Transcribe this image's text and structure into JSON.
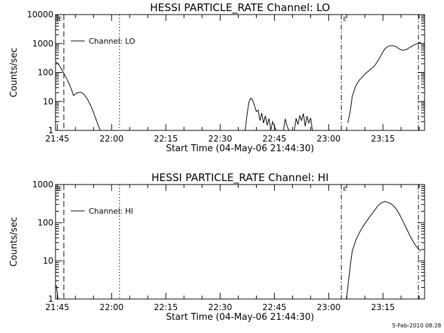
{
  "chart_data": [
    {
      "type": "line",
      "title": "HESSI PARTICLE_RATE Channel: LO",
      "xlabel": "Start Time (04-May-06 21:44:30)",
      "ylabel": "Counts/sec",
      "yscale": "log",
      "ylim": [
        1,
        10000
      ],
      "xlim_minutes": [
        0,
        102
      ],
      "x_tick_labels": [
        "21:45",
        "22:00",
        "22:15",
        "22:30",
        "22:45",
        "23:00",
        "23:15"
      ],
      "y_tick_labels": [
        "1",
        "10",
        "100",
        "1000",
        "10000"
      ],
      "legend": "Channel: LO",
      "legend_position": "top-left",
      "marker_label": "E",
      "series": [
        {
          "name": "Channel: LO",
          "segments": [
            [
              [
                0.2,
                230
              ],
              [
                1,
                180
              ],
              [
                2,
                110
              ],
              [
                3,
                65
              ],
              [
                4,
                35
              ],
              [
                5,
                16
              ],
              [
                6,
                20
              ],
              [
                7,
                21
              ],
              [
                8,
                17
              ],
              [
                9,
                11
              ],
              [
                10,
                6
              ],
              [
                11,
                2.8
              ],
              [
                12,
                1.3
              ],
              [
                12.4,
                1
              ]
            ],
            [
              [
                52.4,
                1
              ],
              [
                53,
                4
              ],
              [
                53.5,
                10
              ],
              [
                54,
                13
              ],
              [
                54.5,
                11
              ],
              [
                55,
                7
              ],
              [
                55.5,
                4.5
              ],
              [
                56,
                5
              ],
              [
                56.5,
                2.2
              ],
              [
                57,
                4
              ],
              [
                57.5,
                1.8
              ],
              [
                58,
                3.2
              ],
              [
                58.5,
                1.5
              ],
              [
                59,
                2.6
              ],
              [
                59.5,
                1
              ],
              [
                60,
                2
              ],
              [
                60.5,
                1.4
              ],
              [
                61,
                1
              ]
            ],
            [
              [
                63,
                1
              ],
              [
                63.5,
                2.5
              ],
              [
                64,
                1.4
              ],
              [
                64.5,
                1
              ]
            ],
            [
              [
                66,
                1
              ],
              [
                66.5,
                2.6
              ],
              [
                67,
                1.6
              ],
              [
                67.5,
                3.2
              ],
              [
                68,
                2.2
              ],
              [
                68.5,
                3.8
              ],
              [
                69,
                1.4
              ],
              [
                69.5,
                3.1
              ],
              [
                70,
                1.8
              ],
              [
                70.5,
                2.7
              ],
              [
                71,
                1
              ]
            ],
            [
              [
                80.8,
                1.8
              ],
              [
                81.5,
                5
              ],
              [
                82,
                15
              ],
              [
                83,
                35
              ],
              [
                84,
                55
              ],
              [
                86,
                100
              ],
              [
                88,
                160
              ],
              [
                89,
                240
              ],
              [
                90,
                400
              ],
              [
                91,
                650
              ],
              [
                92,
                820
              ],
              [
                93,
                850
              ],
              [
                94,
                800
              ],
              [
                95,
                650
              ],
              [
                96,
                580
              ],
              [
                97,
                620
              ],
              [
                98,
                750
              ],
              [
                99,
                880
              ],
              [
                100,
                1000
              ],
              [
                101,
                1100
              ]
            ]
          ]
        }
      ]
    },
    {
      "type": "line",
      "title": "HESSI PARTICLE_RATE Channel: HI",
      "xlabel": "Start Time (04-May-06 21:44:30)",
      "ylabel": "Counts/sec",
      "yscale": "log",
      "ylim": [
        1,
        1000
      ],
      "xlim_minutes": [
        0,
        102
      ],
      "x_tick_labels": [
        "21:45",
        "22:00",
        "22:15",
        "22:30",
        "22:45",
        "23:00",
        "23:15"
      ],
      "y_tick_labels": [
        "1",
        "10",
        "100",
        "1000"
      ],
      "legend": "Channel: HI",
      "legend_position": "top-left",
      "marker_label": "E",
      "series": [
        {
          "name": "Channel: HI",
          "segments": [
            [
              [
                0.2,
                2.3
              ],
              [
                0.7,
                1
              ]
            ],
            [
              [
                80.4,
                1
              ],
              [
                81,
                3
              ],
              [
                81.5,
                8
              ],
              [
                82,
                18
              ],
              [
                83,
                35
              ],
              [
                84,
                55
              ],
              [
                85,
                80
              ],
              [
                86,
                110
              ],
              [
                87,
                150
              ],
              [
                88,
                200
              ],
              [
                89,
                270
              ],
              [
                90,
                330
              ],
              [
                91,
                360
              ],
              [
                92,
                340
              ],
              [
                93,
                300
              ],
              [
                94,
                240
              ],
              [
                95,
                170
              ],
              [
                96,
                110
              ],
              [
                97,
                70
              ],
              [
                98,
                45
              ],
              [
                99,
                30
              ],
              [
                100,
                22
              ],
              [
                101,
                18
              ]
            ]
          ]
        }
      ]
    }
  ],
  "footer_date": "5-Feb-2010 08:28"
}
